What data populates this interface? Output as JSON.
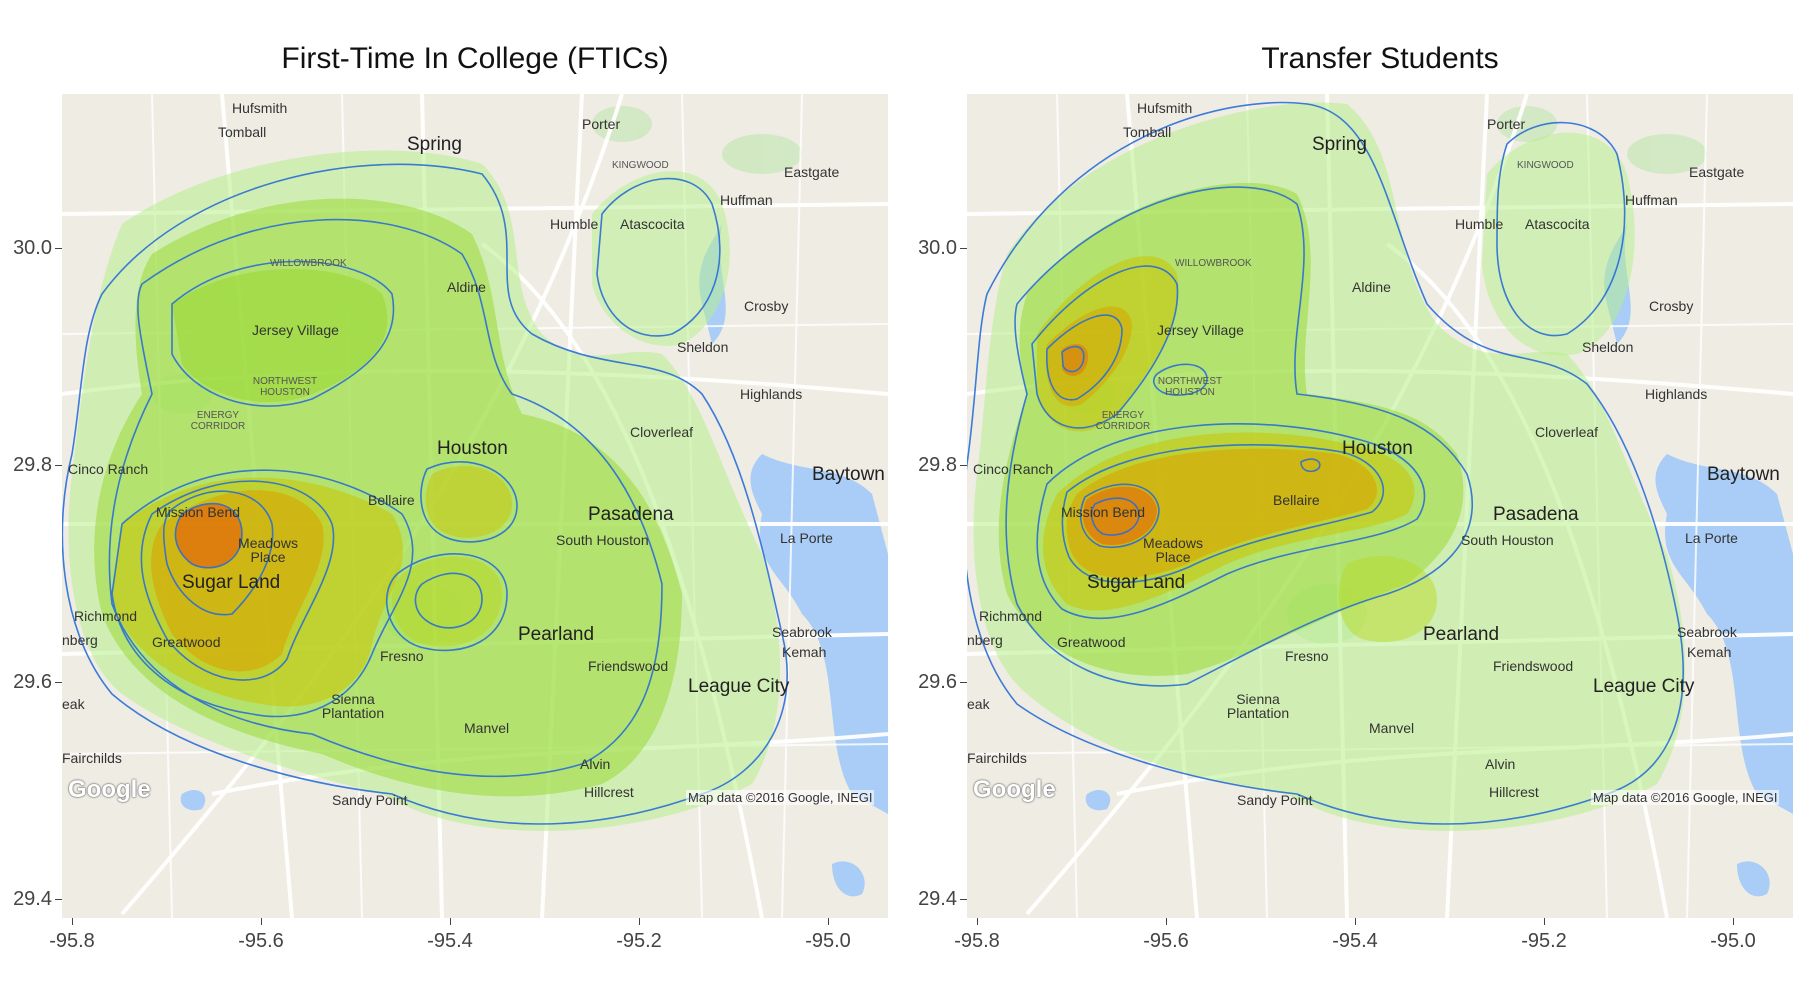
{
  "panels": [
    {
      "id": "ftic",
      "title": "First-Time In College (FTICs)",
      "attribution": "Map data ©2016 Google, INEGI",
      "logo": "Google"
    },
    {
      "id": "transfer",
      "title": "Transfer Students",
      "attribution": "Map data ©2016 Google, INEGI",
      "logo": "Google"
    }
  ],
  "y_ticks": [
    "30.0",
    "29.8",
    "29.6",
    "29.4"
  ],
  "x_ticks": [
    "-95.8",
    "-95.6",
    "-95.4",
    "-95.2",
    "-95.0"
  ],
  "places": {
    "hufsmith": "Hufsmith",
    "tomball": "Tomball",
    "porter": "Porter",
    "spring": "Spring",
    "kingwood": "KINGWOOD",
    "eastgate": "Eastgate",
    "huffman": "Huffman",
    "humble": "Humble",
    "atascocita": "Atascocita",
    "willowbrook": "WILLOWBROOK",
    "aldine": "Aldine",
    "crosby": "Crosby",
    "jersey_village": "Jersey Village",
    "sheldon": "Sheldon",
    "northwest_houston": "NORTHWEST HOUSTON",
    "highlands": "Highlands",
    "energy_corridor": "ENERGY CORRIDOR",
    "cloverleaf": "Cloverleaf",
    "houston": "Houston",
    "cinco_ranch": "Cinco Ranch",
    "baytown": "Baytown",
    "bellaire": "Bellaire",
    "mission_bend": "Mission Bend",
    "pasadena": "Pasadena",
    "meadows_place": "Meadows Place",
    "south_houston": "South Houston",
    "la_porte": "La Porte",
    "sugar_land": "Sugar Land",
    "richmond": "Richmond",
    "rosenberg": "nberg",
    "pearland": "Pearland",
    "seabrook": "Seabrook",
    "greatwood": "Greatwood",
    "fresno": "Fresno",
    "kemah": "Kemah",
    "friendswood": "Friendswood",
    "league_city": "League City",
    "sienna_plantation": "Sienna Plantation",
    "manvel": "Manvel",
    "fairchilds": "Fairchilds",
    "alvin": "Alvin",
    "hillcrest": "Hillcrest",
    "sandy_point": "Sandy Point",
    "eak": "eak"
  },
  "colors": {
    "water": "#a9cdf6",
    "land": "#efece4",
    "park": "#cfe8c0",
    "road": "#ffffff",
    "contour": "#2a6fd6",
    "density_low": "#b6f08a",
    "density_mid": "#9ad836",
    "density_high": "#d9a400",
    "density_peak": "#e3620a"
  }
}
